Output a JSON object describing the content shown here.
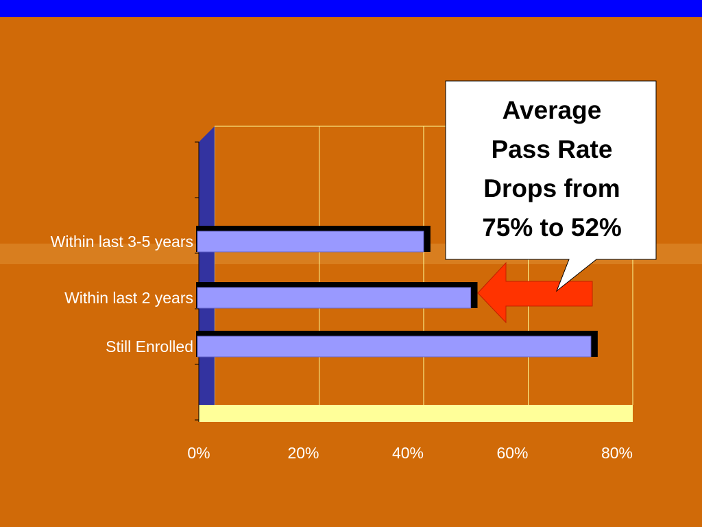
{
  "colors": {
    "background": "#D06A08",
    "top_bar": "#0000FF",
    "bar_fill": "#9999FF",
    "bar_shadow": "#000000",
    "wall": "#3333A0",
    "floor": "#FFFF99",
    "grid": "#FFFF99",
    "arrow": "#FF3300",
    "text": "#FFFFFF"
  },
  "callout": {
    "lines": [
      "Average",
      "Pass Rate",
      "Drops from",
      "75% to 52%"
    ]
  },
  "chart_data": {
    "type": "bar",
    "orientation": "horizontal",
    "categories": [
      "Within last 3-5 years",
      "Within last 2 years",
      "Still Enrolled"
    ],
    "values": [
      43,
      52,
      75
    ],
    "xlim": [
      0,
      80
    ],
    "xticks": [
      0,
      20,
      40,
      60,
      80
    ],
    "xtick_labels": [
      "0%",
      "20%",
      "40%",
      "60%",
      "80%"
    ],
    "grid": true,
    "title": "",
    "xlabel": "",
    "ylabel": ""
  }
}
